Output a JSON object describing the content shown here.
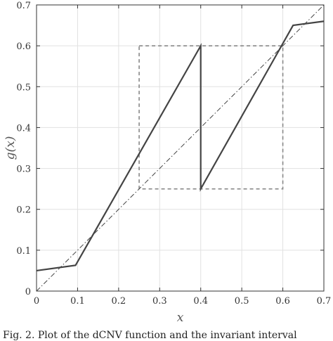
{
  "chart_data": {
    "type": "line",
    "xlabel": "x",
    "ylabel": "g(x)",
    "xlim": [
      0,
      0.7
    ],
    "ylim": [
      0,
      0.7
    ],
    "xticks": [
      "0",
      "0.1",
      "0.2",
      "0.3",
      "0.4",
      "0.5",
      "0.6",
      "0.7"
    ],
    "yticks": [
      "0",
      "0.1",
      "0.2",
      "0.3",
      "0.4",
      "0.5",
      "0.6",
      "0.7"
    ],
    "grid": true,
    "series": [
      {
        "style": "solid",
        "color": "#444444",
        "x": [
          0,
          0.095,
          0.4,
          0.4,
          0.625,
          0.7
        ],
        "y": [
          0.05,
          0.063,
          0.6,
          0.25,
          0.65,
          0.66
        ]
      },
      {
        "style": "dash-dot",
        "color": "#444444",
        "x": [
          0,
          0.7
        ],
        "y": [
          0,
          0.7
        ]
      }
    ],
    "annotations": [
      {
        "type": "rectangle",
        "style": "dashed",
        "color": "#888888",
        "x": [
          0.25,
          0.6
        ],
        "y": [
          0.25,
          0.6
        ]
      }
    ]
  },
  "caption": "Fig. 2.  Plot of the dCNV function and the invariant interval"
}
